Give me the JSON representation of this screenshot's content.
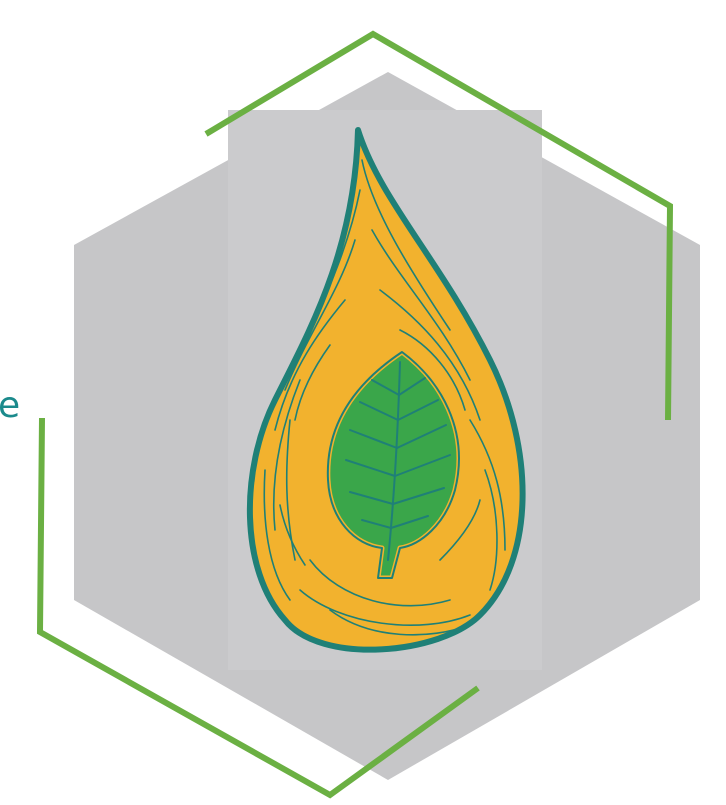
{
  "logo": {
    "name": "oil-drop-leaf-hexagon-logo",
    "edge_text": "e",
    "colors": {
      "background": "#ffffff",
      "hexagon_fill": "#c6c6c8",
      "outline_green": "#6bb043",
      "drop_fill": "#f2b22e",
      "drop_outline": "#1f8077",
      "leaf_fill": "#3aa64a",
      "leaf_vein": "#1f8077"
    }
  }
}
